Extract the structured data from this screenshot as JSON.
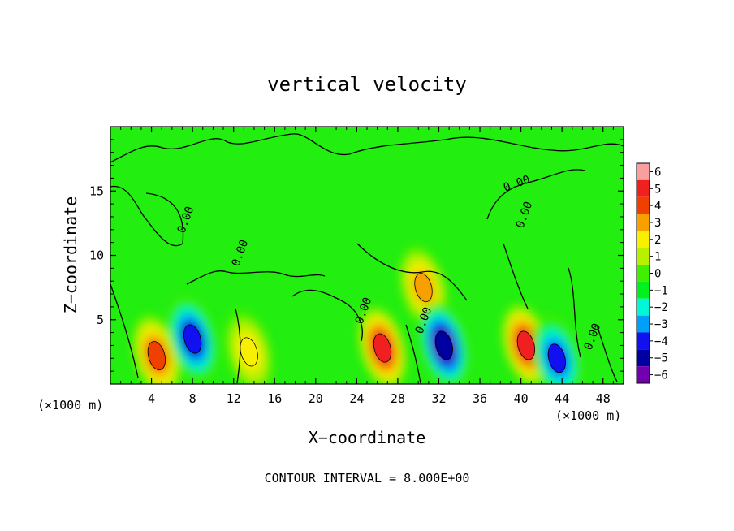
{
  "chart_data": {
    "type": "heatmap",
    "title": "vertical velocity",
    "xlabel": "X−coordinate",
    "ylabel": "Z−coordinate",
    "x_unit_left": "(×1000 m)",
    "x_unit_right": "(×1000 m)",
    "xlim": [
      0,
      50
    ],
    "ylim": [
      0,
      20
    ],
    "x_ticks": [
      4,
      8,
      12,
      16,
      20,
      24,
      28,
      32,
      36,
      40,
      44,
      48
    ],
    "y_ticks": [
      5,
      10,
      15
    ],
    "contour_label": "0.00",
    "contour_interval_text": "CONTOUR INTERVAL = 8.000E+00",
    "colorbar": {
      "ticks": [
        6,
        5,
        4,
        3,
        2,
        1,
        0,
        -1,
        -2,
        -3,
        -4,
        -5,
        -6
      ],
      "tick_labels": [
        "6",
        "5",
        "4",
        "3",
        "2",
        "1",
        "0",
        "−1",
        "−2",
        "−3",
        "−4",
        "−5",
        "−6"
      ],
      "colors": [
        "#f8a0a0",
        "#f02020",
        "#f04000",
        "#f8a000",
        "#f8f000",
        "#b8f000",
        "#40f000",
        "#00f020",
        "#00f8d8",
        "#00a0f8",
        "#1010f0",
        "#0000a0",
        "#7000b0"
      ]
    },
    "features": [
      {
        "x": 4.5,
        "z": 2.2,
        "w": 3.5
      },
      {
        "x": 8.0,
        "z": 3.5,
        "w": -4.5
      },
      {
        "x": 13.5,
        "z": 2.5,
        "w": 2.0
      },
      {
        "x": 26.5,
        "z": 2.8,
        "w": 5.0
      },
      {
        "x": 30.5,
        "z": 7.5,
        "w": 3.0
      },
      {
        "x": 32.5,
        "z": 3.0,
        "w": -5.5
      },
      {
        "x": 40.5,
        "z": 3.0,
        "w": 5.0
      },
      {
        "x": 43.5,
        "z": 2.0,
        "w": -4.0
      }
    ]
  }
}
